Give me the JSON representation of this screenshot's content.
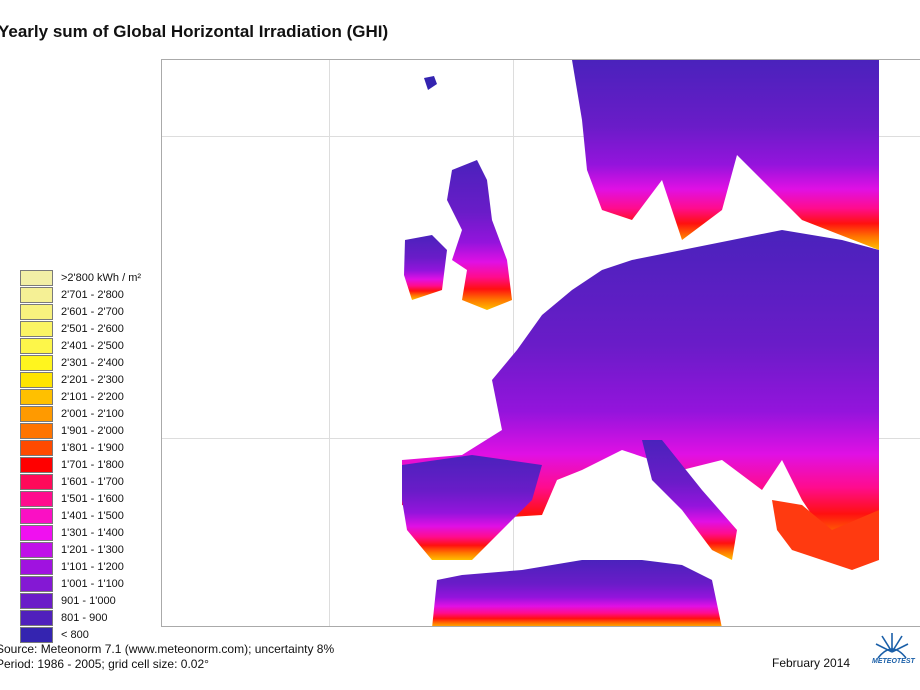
{
  "title": "Yearly sum of Global Horizontal Irradiation (GHI)",
  "legend": {
    "unit": "kWh / m",
    "unit_sup": "2",
    "items": [
      {
        "label": ">2'800 kWh / m²",
        "color": "#f2efa6"
      },
      {
        "label": "2'701 - 2'800",
        "color": "#f5f095"
      },
      {
        "label": "2'601 - 2'700",
        "color": "#f8f27e"
      },
      {
        "label": "2'501 - 2'600",
        "color": "#fbf464"
      },
      {
        "label": "2'401 - 2'500",
        "color": "#fdf64a"
      },
      {
        "label": "2'301 - 2'400",
        "color": "#fff51e"
      },
      {
        "label": "2'201 - 2'300",
        "color": "#ffe400"
      },
      {
        "label": "2'101 - 2'200",
        "color": "#ffc000"
      },
      {
        "label": "2'001 - 2'100",
        "color": "#ff9a00"
      },
      {
        "label": "1'901 - 2'000",
        "color": "#ff7400"
      },
      {
        "label": "1'801 - 1'900",
        "color": "#ff4a00"
      },
      {
        "label": "1'701 - 1'800",
        "color": "#ff0000"
      },
      {
        "label": "1'601 - 1'700",
        "color": "#ff0a5a"
      },
      {
        "label": "1'501 - 1'600",
        "color": "#ff0c8e"
      },
      {
        "label": "1'401 - 1'500",
        "color": "#fa10c4"
      },
      {
        "label": "1'301 - 1'400",
        "color": "#f010f0"
      },
      {
        "label": "1'201 - 1'300",
        "color": "#c010e8"
      },
      {
        "label": "1'101 - 1'200",
        "color": "#a012e0"
      },
      {
        "label": "1'001 - 1'100",
        "color": "#8418d4"
      },
      {
        "label": "901 - 1'000",
        "color": "#6a1cc8"
      },
      {
        "label": "801 - 900",
        "color": "#5020bc"
      },
      {
        "label": "< 800",
        "color": "#3424b0"
      }
    ]
  },
  "footer": {
    "source": "Source: Meteonorm 7.1 (www.meteonorm.com); uncertainty 8%",
    "period": "Period: 1986 - 2005; grid cell size: 0.02°",
    "date": "February 2014",
    "logo_text": "METEOTEST"
  },
  "map": {
    "region": "Europe and North Africa",
    "variable": "GHI yearly sum",
    "unit": "kWh/m²"
  }
}
